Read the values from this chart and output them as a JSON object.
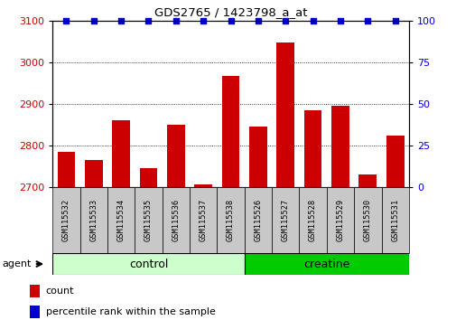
{
  "title": "GDS2765 / 1423798_a_at",
  "samples": [
    "GSM115532",
    "GSM115533",
    "GSM115534",
    "GSM115535",
    "GSM115536",
    "GSM115537",
    "GSM115538",
    "GSM115526",
    "GSM115527",
    "GSM115528",
    "GSM115529",
    "GSM115530",
    "GSM115531"
  ],
  "counts": [
    2785,
    2765,
    2860,
    2745,
    2850,
    2707,
    2968,
    2845,
    3048,
    2885,
    2895,
    2730,
    2825
  ],
  "percentiles": [
    100,
    100,
    100,
    100,
    100,
    100,
    100,
    100,
    100,
    100,
    100,
    100,
    100
  ],
  "groups": [
    "control",
    "control",
    "control",
    "control",
    "control",
    "control",
    "control",
    "creatine",
    "creatine",
    "creatine",
    "creatine",
    "creatine",
    "creatine"
  ],
  "n_control": 7,
  "n_creatine": 6,
  "ylim_left": [
    2700,
    3100
  ],
  "ylim_right": [
    0,
    100
  ],
  "yticks_left": [
    2700,
    2800,
    2900,
    3000,
    3100
  ],
  "yticks_right": [
    0,
    25,
    50,
    75,
    100
  ],
  "bar_color": "#cc0000",
  "percentile_color": "#0000cc",
  "control_color": "#ccffcc",
  "creatine_color": "#00cc00",
  "tick_bg_color": "#c8c8c8",
  "tick_label_color_left": "#cc0000",
  "tick_label_color_right": "#0000cc",
  "bar_width": 0.65,
  "baseline": 2700
}
